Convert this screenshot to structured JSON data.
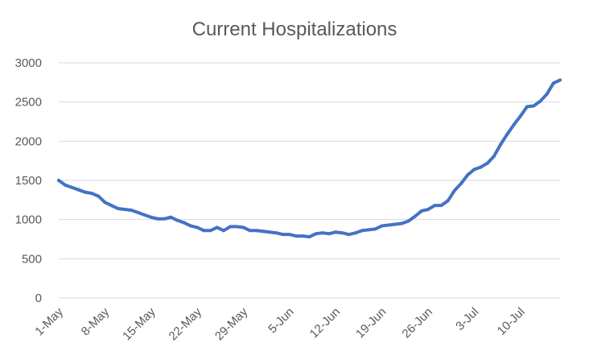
{
  "chart_data": {
    "type": "line",
    "title": "Current Hospitalizations",
    "xlabel": "",
    "ylabel": "",
    "ylim": [
      0,
      3000
    ],
    "yticks": [
      0,
      500,
      1000,
      1500,
      2000,
      2500,
      3000
    ],
    "grid": true,
    "legend": "none",
    "line_color": "#4472c4",
    "x_tick_labels": [
      "1-May",
      "8-May",
      "15-May",
      "22-May",
      "29-May",
      "5-Jun",
      "12-Jun",
      "19-Jun",
      "26-Jun",
      "3-Jul",
      "10-Jul"
    ],
    "x_tick_index": [
      0,
      7,
      14,
      21,
      28,
      35,
      42,
      49,
      56,
      63,
      70
    ],
    "series": [
      {
        "values": [
          1500,
          1440,
          1410,
          1380,
          1350,
          1335,
          1300,
          1220,
          1180,
          1140,
          1130,
          1120,
          1090,
          1060,
          1030,
          1010,
          1010,
          1030,
          990,
          960,
          920,
          900,
          860,
          860,
          900,
          860,
          910,
          910,
          900,
          860,
          860,
          850,
          840,
          830,
          810,
          810,
          790,
          790,
          780,
          820,
          830,
          820,
          840,
          830,
          810,
          830,
          860,
          870,
          880,
          920,
          930,
          940,
          950,
          980,
          1040,
          1110,
          1130,
          1180,
          1180,
          1240,
          1370,
          1460,
          1570,
          1640,
          1670,
          1720,
          1810,
          1960,
          2090,
          2210,
          2320,
          2440,
          2450,
          2510,
          2600,
          2740,
          2780
        ]
      }
    ]
  }
}
